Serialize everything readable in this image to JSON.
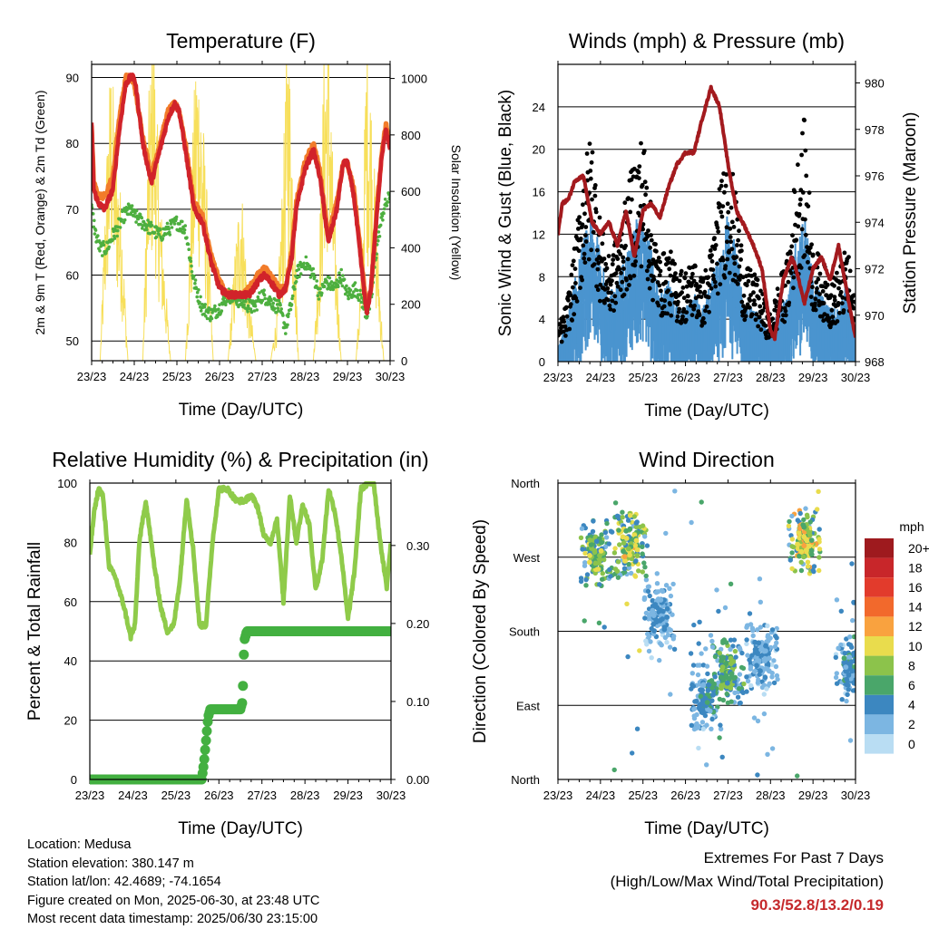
{
  "panels": {
    "temperature": {
      "title": "Temperature (F)",
      "ylabel_left": "2m & 9m T (Red, Orange) & 2m Td (Green)",
      "ylabel_right": "Solar Insolation (Yellow)",
      "xlabel": "Time (Day/UTC)"
    },
    "winds": {
      "title": "Winds (mph) & Pressure (mb)",
      "ylabel_left": "Sonic Wind & Gust (Blue, Black)",
      "ylabel_right": "Station Pressure (Maroon)",
      "xlabel": "Time (Day/UTC)"
    },
    "humidity": {
      "title": "Relative Humidity (%) & Precipitation (in)",
      "ylabel_left": "Percent & Total Rainfall",
      "xlabel": "Time (Day/UTC)"
    },
    "direction": {
      "title": "Wind Direction",
      "ylabel_left": "Direction (Colored By Speed)",
      "xlabel": "Time (Day/UTC)",
      "legend_title": "mph"
    }
  },
  "station": {
    "location": "Location: Medusa",
    "elevation": "Station elevation: 380.147 m",
    "latlon": "Station lat/lon: 42.4689; -74.1654",
    "created": "Figure created on Mon, 2025-06-30, at 23:48 UTC",
    "recent": "Most recent data timestamp: 2025/06/30 23:15:00"
  },
  "extremes": {
    "title": "Extremes For Past 7 Days",
    "subtitle": "(High/Low/Max Wind/Total Precipitation)",
    "values": "90.3/52.8/13.2/0.19"
  },
  "colors": {
    "temp2m": "#d1232a",
    "temp9m": "#f27c2a",
    "dewpoint": "#4daf3f",
    "solar": "#f7df5a",
    "wind": "#4a94cf",
    "gust": "#000000",
    "pressure": "#a31a1e",
    "rh": "#8fcb4a",
    "precip": "#43b040"
  },
  "chart_data": [
    {
      "id": "temperature",
      "type": "line",
      "title": "Temperature (F)",
      "xlabel": "Time (Day/UTC)",
      "ylabel": "2m & 9m T (Red, Orange) & 2m Td (Green)",
      "ylabel_right": "Solar Insolation (Yellow)",
      "x_ticks": [
        "23/23",
        "24/23",
        "25/23",
        "26/23",
        "27/23",
        "28/23",
        "29/23",
        "30/23"
      ],
      "xlim": [
        0,
        7
      ],
      "ylim": [
        47,
        92
      ],
      "y_ticks": [
        50,
        60,
        70,
        80,
        90
      ],
      "ylim_right": [
        0,
        1050
      ],
      "y_ticks_right": [
        0,
        200,
        400,
        600,
        800,
        1000
      ],
      "grid": true,
      "x_unit": "days since 23/23",
      "series": [
        {
          "name": "2m T",
          "axis": "left",
          "x": [
            0,
            0.05,
            0.15,
            0.3,
            0.5,
            0.65,
            0.8,
            0.9,
            1.0,
            1.05,
            1.2,
            1.4,
            1.6,
            1.8,
            1.95,
            2.05,
            2.2,
            2.4,
            2.6,
            2.8,
            3.0,
            3.2,
            3.5,
            3.7,
            3.9,
            4.05,
            4.2,
            4.4,
            4.55,
            4.7,
            4.8,
            5.0,
            5.2,
            5.35,
            5.55,
            5.75,
            5.9,
            6.0,
            6.15,
            6.3,
            6.45,
            6.55,
            6.7,
            6.8,
            6.9,
            7.0
          ],
          "values": [
            83,
            73,
            71,
            70,
            73,
            82,
            89,
            90,
            90,
            88,
            80,
            74,
            79,
            84,
            86,
            85,
            79,
            70,
            68,
            62,
            58,
            57,
            57,
            57,
            59,
            60,
            59,
            57,
            58,
            63,
            70,
            76,
            79,
            75,
            65,
            70,
            77,
            77,
            72,
            63,
            54,
            58,
            70,
            78,
            82,
            79
          ]
        },
        {
          "name": "9m T",
          "axis": "left",
          "x": [
            0,
            0.05,
            0.15,
            0.3,
            0.5,
            0.65,
            0.8,
            0.9,
            1.0,
            1.05,
            1.2,
            1.4,
            1.6,
            1.8,
            1.95,
            2.05,
            2.2,
            2.4,
            2.6,
            2.8,
            3.0,
            3.2,
            3.5,
            3.7,
            3.9,
            4.05,
            4.2,
            4.4,
            4.55,
            4.7,
            4.8,
            5.0,
            5.2,
            5.35,
            5.55,
            5.75,
            5.9,
            6.0,
            6.15,
            6.3,
            6.45,
            6.55,
            6.7,
            6.8,
            6.9,
            7.0
          ],
          "values": [
            83,
            74,
            72,
            72,
            75,
            84,
            90,
            90,
            89,
            87,
            81,
            75,
            80,
            85,
            86,
            85,
            80,
            71,
            69,
            63,
            59,
            57,
            57,
            58,
            60,
            61,
            60,
            58,
            58,
            64,
            71,
            77,
            80,
            76,
            66,
            71,
            77,
            77,
            73,
            64,
            55,
            58,
            71,
            78,
            83,
            80
          ]
        },
        {
          "name": "2m Td",
          "axis": "left",
          "x": [
            0,
            0.1,
            0.2,
            0.35,
            0.5,
            0.6,
            0.75,
            0.9,
            1.0,
            1.2,
            1.4,
            1.6,
            1.8,
            2.0,
            2.2,
            2.4,
            2.6,
            2.8,
            3.0,
            3.2,
            3.5,
            3.8,
            4.0,
            4.2,
            4.4,
            4.55,
            4.7,
            4.8,
            5.0,
            5.2,
            5.35,
            5.5,
            5.7,
            5.85,
            6.0,
            6.2,
            6.35,
            6.45,
            6.55,
            6.7,
            6.85,
            7.0
          ],
          "values": [
            70,
            66,
            64,
            64,
            66,
            67,
            69,
            70,
            69,
            68,
            67,
            66,
            67,
            68,
            67,
            59,
            55,
            54,
            55,
            57,
            56,
            55,
            57,
            56,
            55,
            52,
            56,
            60,
            62,
            60,
            57,
            59,
            58,
            60,
            57,
            58,
            56,
            54,
            56,
            65,
            70,
            72
          ]
        },
        {
          "name": "Solar Insolation",
          "axis": "right",
          "x": [
            0,
            0.2,
            0.35,
            0.45,
            0.55,
            0.7,
            0.85,
            1.2,
            1.35,
            1.45,
            1.55,
            1.65,
            1.85,
            2.2,
            2.35,
            2.45,
            2.55,
            2.7,
            2.85,
            3.2,
            3.35,
            3.5,
            3.65,
            3.85,
            4.2,
            4.35,
            4.5,
            4.6,
            4.7,
            4.85,
            5.2,
            5.35,
            5.45,
            5.55,
            5.65,
            5.85,
            6.2,
            6.35,
            6.45,
            6.55,
            6.65,
            6.85,
            7.0
          ],
          "values": [
            0,
            0,
            600,
            900,
            700,
            450,
            0,
            0,
            800,
            1000,
            650,
            400,
            0,
            0,
            550,
            950,
            850,
            500,
            0,
            0,
            300,
            550,
            250,
            0,
            0,
            150,
            600,
            1000,
            700,
            0,
            0,
            400,
            900,
            1050,
            600,
            0,
            0,
            350,
            1000,
            800,
            500,
            0,
            0
          ]
        }
      ]
    },
    {
      "id": "winds",
      "type": "scatter",
      "title": "Winds (mph) & Pressure (mb)",
      "xlabel": "Time (Day/UTC)",
      "ylabel": "Sonic Wind & Gust (Blue, Black)",
      "ylabel_right": "Station Pressure (Maroon)",
      "x_ticks": [
        "23/23",
        "24/23",
        "25/23",
        "26/23",
        "27/23",
        "28/23",
        "29/23",
        "30/23"
      ],
      "xlim": [
        0,
        7
      ],
      "ylim": [
        0,
        28
      ],
      "y_ticks": [
        0,
        4,
        8,
        12,
        16,
        20,
        24
      ],
      "ylim_right": [
        968,
        980.8
      ],
      "y_ticks_right": [
        968,
        970,
        972,
        974,
        976,
        978,
        980
      ],
      "grid": true,
      "x_unit": "days since 23/23",
      "series": [
        {
          "name": "Gust envelope",
          "axis": "left",
          "x": [
            0,
            0.2,
            0.4,
            0.6,
            0.8,
            1.0,
            1.2,
            1.4,
            1.6,
            1.8,
            2.0,
            2.2,
            2.4,
            2.6,
            2.8,
            3.0,
            3.2,
            3.4,
            3.6,
            3.8,
            4.0,
            4.2,
            4.4,
            4.6,
            4.8,
            5.0,
            5.2,
            5.4,
            5.6,
            5.8,
            6.0,
            6.2,
            6.4,
            6.6,
            6.8,
            7.0
          ],
          "values": [
            3,
            5,
            10,
            17,
            20,
            12,
            9,
            11,
            14,
            18,
            20,
            13,
            9,
            10,
            8,
            8,
            9,
            7,
            10,
            15,
            19,
            14,
            8,
            8,
            6,
            4,
            7,
            9,
            17,
            21,
            10,
            9,
            7,
            8,
            10,
            5
          ]
        },
        {
          "name": "Sonic Wind",
          "axis": "left",
          "x": [
            0,
            0.2,
            0.4,
            0.6,
            0.8,
            1.0,
            1.2,
            1.4,
            1.6,
            1.8,
            2.0,
            2.2,
            2.4,
            2.6,
            2.8,
            3.0,
            3.2,
            3.4,
            3.6,
            3.8,
            4.0,
            4.2,
            4.4,
            4.6,
            4.8,
            5.0,
            5.2,
            5.4,
            5.6,
            5.8,
            6.0,
            6.2,
            6.4,
            6.6,
            6.8,
            7.0
          ],
          "values": [
            1,
            3,
            6,
            9,
            11,
            8,
            5,
            6,
            8,
            10,
            12,
            8,
            5,
            6,
            4,
            4,
            5,
            4,
            6,
            8,
            11,
            8,
            4,
            4,
            3,
            2,
            4,
            5,
            9,
            11,
            6,
            5,
            4,
            4,
            6,
            2
          ]
        },
        {
          "name": "Station Pressure",
          "axis": "right",
          "x": [
            0,
            0.1,
            0.25,
            0.4,
            0.6,
            0.8,
            1.0,
            1.2,
            1.4,
            1.6,
            1.8,
            2.0,
            2.2,
            2.4,
            2.6,
            2.8,
            3.0,
            3.2,
            3.4,
            3.6,
            3.8,
            4.0,
            4.2,
            4.4,
            4.6,
            4.8,
            5.0,
            5.1,
            5.3,
            5.5,
            5.6,
            5.8,
            6.0,
            6.2,
            6.4,
            6.6,
            6.8,
            7.0
          ],
          "values": [
            973.5,
            974.8,
            975.0,
            975.8,
            976.0,
            974.0,
            973.5,
            974.0,
            973.0,
            974.5,
            972.5,
            974.5,
            974.8,
            974.2,
            975.5,
            976.5,
            977.0,
            977.0,
            978.5,
            979.8,
            979.0,
            976.5,
            974.5,
            973.8,
            973.0,
            972.0,
            969.3,
            969.0,
            971.5,
            972.5,
            972.0,
            970.5,
            972.0,
            972.5,
            971.5,
            973.0,
            971.0,
            969.0
          ]
        }
      ]
    },
    {
      "id": "humidity",
      "type": "line",
      "title": "Relative Humidity (%) & Precipitation (in)",
      "xlabel": "Time (Day/UTC)",
      "ylabel": "Percent & Total Rainfall",
      "x_ticks": [
        "23/23",
        "24/23",
        "25/23",
        "26/23",
        "27/23",
        "28/23",
        "29/23",
        "30/23"
      ],
      "xlim": [
        0,
        7
      ],
      "ylim": [
        0,
        100
      ],
      "y_ticks": [
        0,
        20,
        40,
        60,
        80,
        100
      ],
      "ylim_right": [
        0,
        0.38
      ],
      "y_ticks_right": [
        "0.00",
        "0.10",
        "0.20",
        "0.30"
      ],
      "grid": true,
      "x_unit": "days since 23/23",
      "series": [
        {
          "name": "Relative Humidity",
          "axis": "left",
          "x": [
            0,
            0.1,
            0.2,
            0.3,
            0.45,
            0.6,
            0.8,
            0.95,
            1.05,
            1.15,
            1.3,
            1.5,
            1.65,
            1.8,
            1.95,
            2.1,
            2.25,
            2.4,
            2.55,
            2.7,
            2.85,
            3.0,
            3.2,
            3.4,
            3.6,
            3.75,
            3.9,
            4.05,
            4.2,
            4.35,
            4.5,
            4.65,
            4.8,
            4.95,
            5.1,
            5.25,
            5.4,
            5.55,
            5.7,
            5.85,
            6.0,
            6.15,
            6.3,
            6.5,
            6.6,
            6.75,
            6.9,
            7.0
          ],
          "values": [
            76,
            90,
            98,
            96,
            72,
            68,
            58,
            48,
            52,
            80,
            94,
            72,
            58,
            50,
            52,
            68,
            95,
            78,
            52,
            52,
            80,
            98,
            98,
            94,
            94,
            96,
            92,
            82,
            80,
            88,
            60,
            96,
            80,
            93,
            86,
            64,
            74,
            98,
            90,
            75,
            54,
            70,
            98,
            100,
            100,
            80,
            65,
            80
          ]
        },
        {
          "name": "Total Precipitation",
          "axis": "right",
          "x": [
            0,
            2.5,
            2.6,
            2.65,
            2.7,
            2.75,
            2.8,
            3.0,
            3.5,
            3.55,
            3.58,
            3.6,
            3.65,
            4.0,
            5.0,
            6.0,
            7.0
          ],
          "values": [
            0,
            0,
            0,
            0.02,
            0.05,
            0.08,
            0.09,
            0.09,
            0.09,
            0.1,
            0.16,
            0.18,
            0.19,
            0.19,
            0.19,
            0.19,
            0.19
          ]
        }
      ]
    },
    {
      "id": "direction",
      "type": "scatter",
      "title": "Wind Direction",
      "xlabel": "Time (Day/UTC)",
      "ylabel": "Direction (Colored By Speed)",
      "x_ticks": [
        "23/23",
        "24/23",
        "25/23",
        "26/23",
        "27/23",
        "28/23",
        "29/23",
        "30/23"
      ],
      "xlim": [
        0,
        7
      ],
      "ylim": [
        0,
        360
      ],
      "y_tick_labels": [
        "North",
        "East",
        "South",
        "West",
        "North"
      ],
      "y_tick_values": [
        0,
        90,
        180,
        270,
        360
      ],
      "grid": true,
      "x_unit": "days since 23/23",
      "legend": {
        "title": "mph",
        "labels": [
          "20+",
          "18",
          "16",
          "14",
          "12",
          "10",
          "8",
          "6",
          "4",
          "2",
          "0"
        ],
        "colors": [
          "#9e1a1e",
          "#c8262a",
          "#e23b2c",
          "#f2692c",
          "#f9a23f",
          "#e9dc4d",
          "#8cc34b",
          "#4aa66a",
          "#3c87c0",
          "#7cb6e2",
          "#b9ddf3"
        ]
      },
      "clusters": [
        {
          "x": 0.9,
          "dir": 275,
          "speed": 7
        },
        {
          "x": 1.7,
          "dir": 285,
          "speed": 8
        },
        {
          "x": 2.4,
          "dir": 200,
          "speed": 3
        },
        {
          "x": 3.5,
          "dir": 100,
          "speed": 4
        },
        {
          "x": 4.0,
          "dir": 130,
          "speed": 6
        },
        {
          "x": 4.8,
          "dir": 150,
          "speed": 3
        },
        {
          "x": 5.8,
          "dir": 290,
          "speed": 9
        },
        {
          "x": 6.9,
          "dir": 135,
          "speed": 4
        }
      ]
    }
  ]
}
